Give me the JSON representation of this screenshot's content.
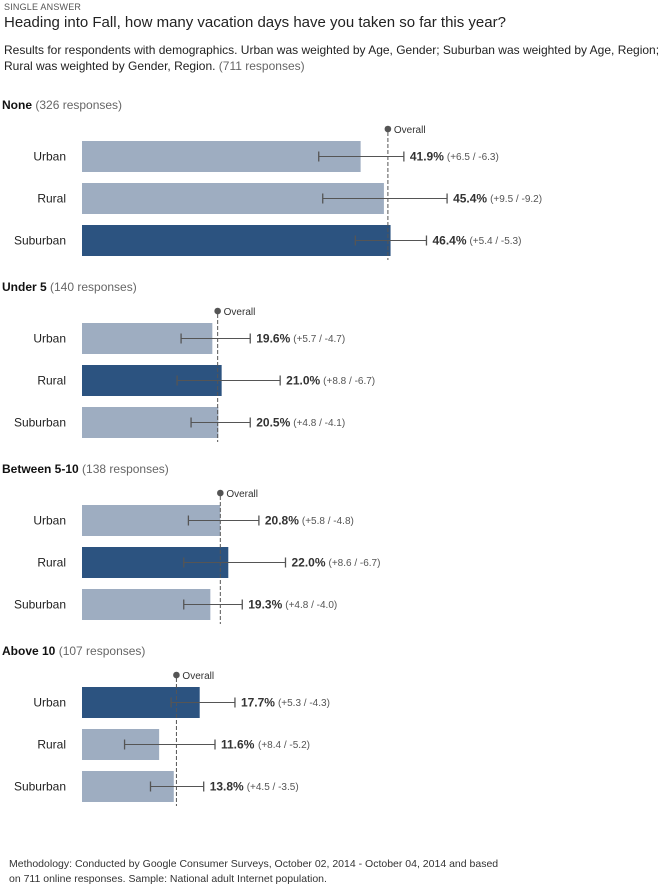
{
  "question_type": "SINGLE ANSWER",
  "title": "Heading into Fall, how many vacation days have you taken so far this year?",
  "subtitle_text": "Results for respondents with demographics. Urban was weighted by Age, Gender; Suburban was weighted by Age, Region; Rural was weighted by Gender, Region.",
  "subtitle_responses": "(711 responses)",
  "overall_label": "Overall",
  "footer": "Methodology: Conducted by Google Consumer Surveys, October 02, 2014 - October 04, 2014 and based on 711 online responses. Sample: National adult Internet population.",
  "colors": {
    "highlight_bar": "#2c5380",
    "normal_bar": "#9eadc1",
    "error_bar": "#555555",
    "overall_line": "#555555"
  },
  "chart_data": {
    "type": "bar",
    "orientation": "horizontal",
    "unit": "%",
    "groups": [
      {
        "name": "None",
        "responses": "(326 responses)",
        "overall": 46.0,
        "bars": [
          {
            "category": "Urban",
            "value": 41.9,
            "label": "41.9%",
            "plus": 6.5,
            "minus": 6.3,
            "moe": "(+6.5 / -6.3)",
            "highlight": false
          },
          {
            "category": "Rural",
            "value": 45.4,
            "label": "45.4%",
            "plus": 9.5,
            "minus": 9.2,
            "moe": "(+9.5 / -9.2)",
            "highlight": false
          },
          {
            "category": "Suburban",
            "value": 46.4,
            "label": "46.4%",
            "plus": 5.4,
            "minus": 5.3,
            "moe": "(+5.4 / -5.3)",
            "highlight": true
          }
        ]
      },
      {
        "name": "Under 5",
        "responses": "(140 responses)",
        "overall": 20.4,
        "bars": [
          {
            "category": "Urban",
            "value": 19.6,
            "label": "19.6%",
            "plus": 5.7,
            "minus": 4.7,
            "moe": "(+5.7 / -4.7)",
            "highlight": false
          },
          {
            "category": "Rural",
            "value": 21.0,
            "label": "21.0%",
            "plus": 8.8,
            "minus": 6.7,
            "moe": "(+8.8 / -6.7)",
            "highlight": true
          },
          {
            "category": "Suburban",
            "value": 20.5,
            "label": "20.5%",
            "plus": 4.8,
            "minus": 4.1,
            "moe": "(+4.8 / -4.1)",
            "highlight": false
          }
        ]
      },
      {
        "name": "Between 5-10",
        "responses": "(138 responses)",
        "overall": 20.8,
        "bars": [
          {
            "category": "Urban",
            "value": 20.8,
            "label": "20.8%",
            "plus": 5.8,
            "minus": 4.8,
            "moe": "(+5.8 / -4.8)",
            "highlight": false
          },
          {
            "category": "Rural",
            "value": 22.0,
            "label": "22.0%",
            "plus": 8.6,
            "minus": 6.7,
            "moe": "(+8.6 / -6.7)",
            "highlight": true
          },
          {
            "category": "Suburban",
            "value": 19.3,
            "label": "19.3%",
            "plus": 4.8,
            "minus": 4.0,
            "moe": "(+4.8 / -4.0)",
            "highlight": false
          }
        ]
      },
      {
        "name": "Above 10",
        "responses": "(107 responses)",
        "overall": 14.2,
        "bars": [
          {
            "category": "Urban",
            "value": 17.7,
            "label": "17.7%",
            "plus": 5.3,
            "minus": 4.3,
            "moe": "(+5.3 / -4.3)",
            "highlight": true
          },
          {
            "category": "Rural",
            "value": 11.6,
            "label": "11.6%",
            "plus": 8.4,
            "minus": 5.2,
            "moe": "(+8.4 / -5.2)",
            "highlight": false
          },
          {
            "category": "Suburban",
            "value": 13.8,
            "label": "13.8%",
            "plus": 4.5,
            "minus": 3.5,
            "moe": "(+4.5 / -3.5)",
            "highlight": false
          }
        ]
      }
    ]
  }
}
